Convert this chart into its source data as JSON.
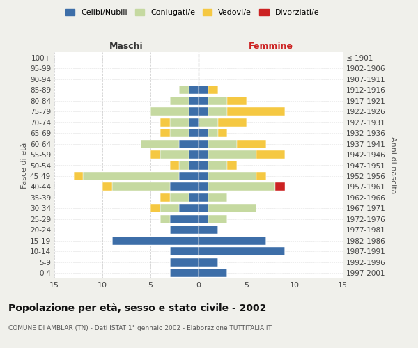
{
  "age_groups": [
    "0-4",
    "5-9",
    "10-14",
    "15-19",
    "20-24",
    "25-29",
    "30-34",
    "35-39",
    "40-44",
    "45-49",
    "50-54",
    "55-59",
    "60-64",
    "65-69",
    "70-74",
    "75-79",
    "80-84",
    "85-89",
    "90-94",
    "95-99",
    "100+"
  ],
  "birth_years": [
    "1997-2001",
    "1992-1996",
    "1987-1991",
    "1982-1986",
    "1977-1981",
    "1972-1976",
    "1967-1971",
    "1962-1966",
    "1957-1961",
    "1952-1956",
    "1947-1951",
    "1942-1946",
    "1937-1941",
    "1932-1936",
    "1927-1931",
    "1922-1926",
    "1917-1921",
    "1912-1916",
    "1907-1911",
    "1902-1906",
    "≤ 1901"
  ],
  "males": {
    "celibi": [
      3,
      3,
      3,
      9,
      3,
      3,
      2,
      1,
      3,
      2,
      1,
      1,
      2,
      1,
      1,
      1,
      1,
      1,
      0,
      0,
      0
    ],
    "coniugati": [
      0,
      0,
      0,
      0,
      0,
      1,
      2,
      2,
      6,
      10,
      1,
      3,
      4,
      2,
      2,
      4,
      2,
      1,
      0,
      0,
      0
    ],
    "vedovi": [
      0,
      0,
      0,
      0,
      0,
      0,
      1,
      1,
      1,
      1,
      1,
      1,
      0,
      1,
      1,
      0,
      0,
      0,
      0,
      0,
      0
    ],
    "divorziati": [
      0,
      0,
      0,
      0,
      0,
      0,
      0,
      0,
      0,
      0,
      0,
      0,
      0,
      0,
      0,
      0,
      0,
      0,
      0,
      0,
      0
    ]
  },
  "females": {
    "nubili": [
      3,
      2,
      9,
      7,
      2,
      1,
      1,
      1,
      1,
      1,
      1,
      1,
      1,
      1,
      0,
      1,
      1,
      1,
      0,
      0,
      0
    ],
    "coniugate": [
      0,
      0,
      0,
      0,
      0,
      2,
      5,
      2,
      7,
      5,
      2,
      5,
      3,
      1,
      2,
      2,
      2,
      0,
      0,
      0,
      0
    ],
    "vedove": [
      0,
      0,
      0,
      0,
      0,
      0,
      0,
      0,
      0,
      1,
      1,
      3,
      3,
      1,
      3,
      6,
      2,
      1,
      0,
      0,
      0
    ],
    "divorziate": [
      0,
      0,
      0,
      0,
      0,
      0,
      0,
      0,
      1,
      0,
      0,
      0,
      0,
      0,
      0,
      0,
      0,
      0,
      0,
      0,
      0
    ]
  },
  "colors": {
    "celibi": "#3d6ea8",
    "coniugati": "#c5d9a0",
    "vedovi": "#f5c842",
    "divorziati": "#cc2222"
  },
  "title": "Popolazione per età, sesso e stato civile - 2002",
  "subtitle": "COMUNE DI AMBLAR (TN) - Dati ISTAT 1° gennaio 2002 - Elaborazione TUTTITALIA.IT",
  "xlabel_left": "Maschi",
  "xlabel_right": "Femmine",
  "ylabel_left": "Fasce di età",
  "ylabel_right": "Anni di nascita",
  "xlim": 15,
  "legend_labels": [
    "Celibi/Nubili",
    "Coniugati/e",
    "Vedovi/e",
    "Divorziati/e"
  ],
  "bg_color": "#f0f0eb",
  "plot_bg": "#ffffff",
  "grid_color": "#cccccc"
}
